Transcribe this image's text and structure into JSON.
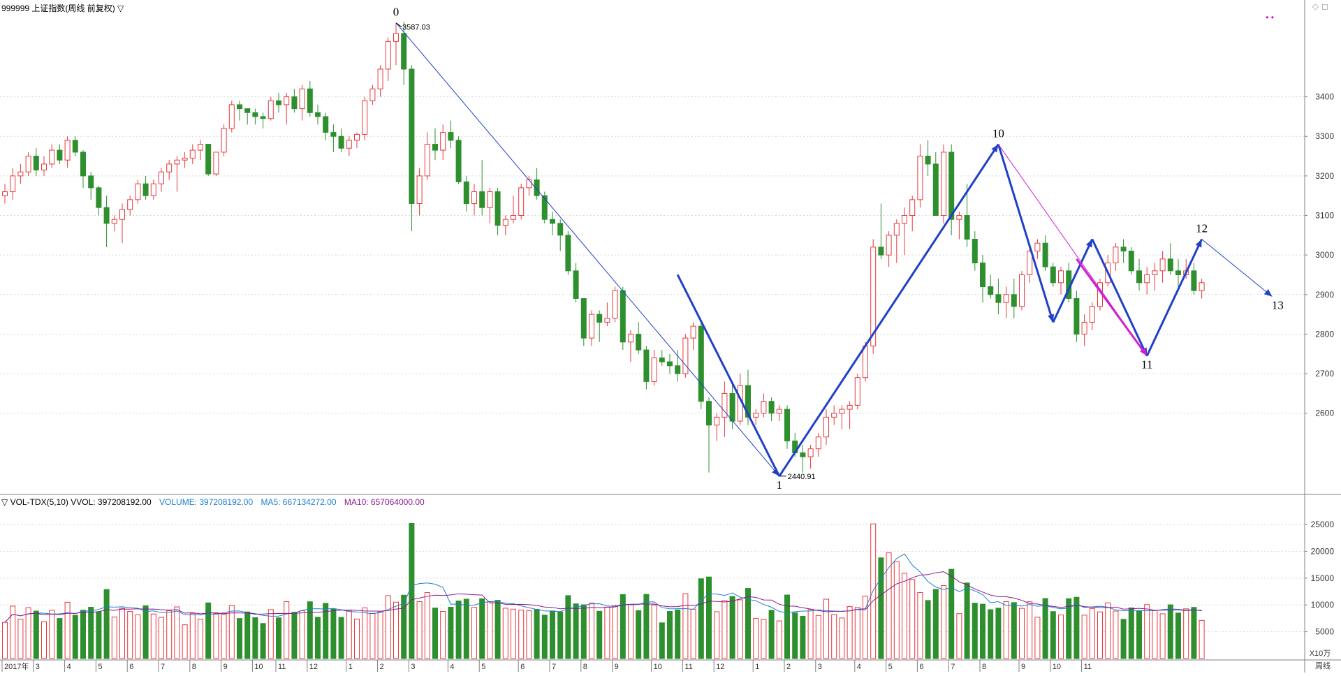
{
  "header": {
    "symbol_title": "999999 上证指数(周线 前复权) ▽",
    "dots": "• •"
  },
  "volume_header": {
    "indicator": "▽ VOL-TDX(5,10) VVOL: 397208192.00",
    "volume": "VOLUME: 397208192.00",
    "ma5": "MA5: 667134272.00",
    "ma10": "MA10: 657064000.00"
  },
  "colors": {
    "up": "#e8383d",
    "down": "#2d8f2d",
    "wave_blue": "#2040c8",
    "wave_magenta": "#d020d0",
    "ma5": "#1e7fd0",
    "ma10": "#8b1a8b",
    "grid": "#d6d6d6",
    "axis": "#808080"
  },
  "chart_data": [
    {
      "type": "candlestick",
      "title": "999999 上证指数(周线 前复权)",
      "ylim": [
        2400,
        3620
      ],
      "y_ticks": [
        2600,
        2700,
        2800,
        2900,
        3000,
        3100,
        3200,
        3300,
        3400
      ],
      "annotations": {
        "high_label": "3587.03",
        "low_label": "2440.91"
      },
      "ohlc": [
        [
          3150,
          3180,
          3130,
          3160
        ],
        [
          3160,
          3220,
          3140,
          3200
        ],
        [
          3200,
          3230,
          3180,
          3210
        ],
        [
          3210,
          3260,
          3200,
          3250
        ],
        [
          3250,
          3270,
          3200,
          3215
        ],
        [
          3215,
          3250,
          3200,
          3230
        ],
        [
          3230,
          3280,
          3220,
          3265
        ],
        [
          3265,
          3280,
          3230,
          3240
        ],
        [
          3240,
          3300,
          3220,
          3290
        ],
        [
          3290,
          3300,
          3250,
          3260
        ],
        [
          3260,
          3265,
          3170,
          3200
        ],
        [
          3200,
          3210,
          3140,
          3170
        ],
        [
          3170,
          3175,
          3100,
          3120
        ],
        [
          3120,
          3150,
          3020,
          3080
        ],
        [
          3080,
          3100,
          3060,
          3090
        ],
        [
          3090,
          3130,
          3030,
          3115
        ],
        [
          3115,
          3150,
          3100,
          3140
        ],
        [
          3140,
          3190,
          3130,
          3180
        ],
        [
          3180,
          3200,
          3140,
          3150
        ],
        [
          3150,
          3190,
          3140,
          3180
        ],
        [
          3180,
          3220,
          3160,
          3210
        ],
        [
          3210,
          3240,
          3190,
          3230
        ],
        [
          3230,
          3250,
          3160,
          3240
        ],
        [
          3240,
          3260,
          3220,
          3245
        ],
        [
          3245,
          3280,
          3230,
          3265
        ],
        [
          3265,
          3290,
          3240,
          3280
        ],
        [
          3280,
          3280,
          3200,
          3205
        ],
        [
          3205,
          3260,
          3200,
          3260
        ],
        [
          3260,
          3330,
          3250,
          3320
        ],
        [
          3320,
          3390,
          3310,
          3380
        ],
        [
          3380,
          3390,
          3340,
          3370
        ],
        [
          3370,
          3370,
          3330,
          3360
        ],
        [
          3360,
          3370,
          3330,
          3350
        ],
        [
          3350,
          3360,
          3320,
          3345
        ],
        [
          3345,
          3400,
          3340,
          3390
        ],
        [
          3390,
          3410,
          3360,
          3380
        ],
        [
          3380,
          3410,
          3330,
          3400
        ],
        [
          3400,
          3420,
          3360,
          3370
        ],
        [
          3370,
          3430,
          3340,
          3420
        ],
        [
          3420,
          3440,
          3350,
          3360
        ],
        [
          3360,
          3380,
          3330,
          3350
        ],
        [
          3350,
          3360,
          3290,
          3310
        ],
        [
          3310,
          3330,
          3260,
          3300
        ],
        [
          3300,
          3320,
          3260,
          3270
        ],
        [
          3270,
          3300,
          3250,
          3290
        ],
        [
          3290,
          3310,
          3270,
          3305
        ],
        [
          3305,
          3400,
          3290,
          3390
        ],
        [
          3390,
          3430,
          3380,
          3420
        ],
        [
          3420,
          3480,
          3400,
          3470
        ],
        [
          3470,
          3550,
          3440,
          3540
        ],
        [
          3540,
          3587,
          3480,
          3560
        ],
        [
          3560,
          3590,
          3430,
          3470
        ],
        [
          3470,
          3480,
          3060,
          3130
        ],
        [
          3130,
          3220,
          3100,
          3200
        ],
        [
          3200,
          3310,
          3190,
          3280
        ],
        [
          3280,
          3320,
          3240,
          3265
        ],
        [
          3265,
          3330,
          3240,
          3310
        ],
        [
          3310,
          3340,
          3270,
          3290
        ],
        [
          3290,
          3300,
          3180,
          3185
        ],
        [
          3185,
          3200,
          3110,
          3130
        ],
        [
          3130,
          3180,
          3100,
          3160
        ],
        [
          3160,
          3240,
          3100,
          3120
        ],
        [
          3120,
          3170,
          3080,
          3160
        ],
        [
          3160,
          3170,
          3050,
          3075
        ],
        [
          3075,
          3100,
          3050,
          3090
        ],
        [
          3090,
          3150,
          3080,
          3100
        ],
        [
          3100,
          3180,
          3090,
          3170
        ],
        [
          3170,
          3200,
          3150,
          3190
        ],
        [
          3190,
          3220,
          3140,
          3150
        ],
        [
          3150,
          3160,
          3080,
          3090
        ],
        [
          3090,
          3110,
          3050,
          3080
        ],
        [
          3080,
          3090,
          3010,
          3050
        ],
        [
          3050,
          3060,
          2950,
          2960
        ],
        [
          2960,
          2980,
          2880,
          2890
        ],
        [
          2890,
          2890,
          2770,
          2790
        ],
        [
          2790,
          2860,
          2770,
          2850
        ],
        [
          2850,
          2860,
          2780,
          2830
        ],
        [
          2830,
          2880,
          2820,
          2840
        ],
        [
          2840,
          2920,
          2830,
          2910
        ],
        [
          2910,
          2920,
          2760,
          2780
        ],
        [
          2780,
          2810,
          2730,
          2800
        ],
        [
          2800,
          2830,
          2750,
          2760
        ],
        [
          2760,
          2770,
          2660,
          2680
        ],
        [
          2680,
          2760,
          2670,
          2740
        ],
        [
          2740,
          2760,
          2720,
          2730
        ],
        [
          2730,
          2750,
          2700,
          2720
        ],
        [
          2720,
          2760,
          2680,
          2700
        ],
        [
          2700,
          2800,
          2690,
          2790
        ],
        [
          2790,
          2830,
          2760,
          2820
        ],
        [
          2820,
          2830,
          2610,
          2630
        ],
        [
          2630,
          2640,
          2450,
          2570
        ],
        [
          2570,
          2600,
          2530,
          2590
        ],
        [
          2590,
          2680,
          2540,
          2650
        ],
        [
          2650,
          2680,
          2560,
          2580
        ],
        [
          2580,
          2700,
          2570,
          2670
        ],
        [
          2670,
          2710,
          2570,
          2590
        ],
        [
          2590,
          2610,
          2570,
          2600
        ],
        [
          2600,
          2650,
          2590,
          2630
        ],
        [
          2630,
          2640,
          2580,
          2600
        ],
        [
          2600,
          2620,
          2580,
          2610
        ],
        [
          2610,
          2620,
          2510,
          2530
        ],
        [
          2530,
          2550,
          2490,
          2500
        ],
        [
          2500,
          2520,
          2450,
          2490
        ],
        [
          2490,
          2520,
          2460,
          2510
        ],
        [
          2510,
          2550,
          2490,
          2540
        ],
        [
          2540,
          2610,
          2520,
          2590
        ],
        [
          2590,
          2620,
          2570,
          2600
        ],
        [
          2600,
          2620,
          2560,
          2610
        ],
        [
          2610,
          2630,
          2560,
          2620
        ],
        [
          2620,
          2700,
          2610,
          2690
        ],
        [
          2690,
          2780,
          2680,
          2770
        ],
        [
          2770,
          3040,
          2750,
          3020
        ],
        [
          3020,
          3130,
          2990,
          3000
        ],
        [
          3000,
          3060,
          2970,
          3050
        ],
        [
          3050,
          3090,
          2980,
          3080
        ],
        [
          3080,
          3120,
          3000,
          3100
        ],
        [
          3100,
          3150,
          3060,
          3140
        ],
        [
          3140,
          3280,
          3120,
          3250
        ],
        [
          3250,
          3290,
          3200,
          3230
        ],
        [
          3230,
          3260,
          3100,
          3100
        ],
        [
          3100,
          3280,
          3080,
          3260
        ],
        [
          3260,
          3280,
          3050,
          3090
        ],
        [
          3090,
          3110,
          3040,
          3100
        ],
        [
          3100,
          3180,
          3020,
          3040
        ],
        [
          3040,
          3060,
          2960,
          2980
        ],
        [
          2980,
          3000,
          2880,
          2920
        ],
        [
          2920,
          2950,
          2890,
          2900
        ],
        [
          2900,
          2940,
          2850,
          2880
        ],
        [
          2880,
          2920,
          2840,
          2900
        ],
        [
          2900,
          2940,
          2840,
          2870
        ],
        [
          2870,
          2960,
          2860,
          2950
        ],
        [
          2950,
          3020,
          2930,
          3010
        ],
        [
          3010,
          3040,
          2990,
          3030
        ],
        [
          3030,
          3050,
          2960,
          2970
        ],
        [
          2970,
          2980,
          2920,
          2930
        ],
        [
          2930,
          2970,
          2900,
          2960
        ],
        [
          2960,
          2980,
          2880,
          2890
        ],
        [
          2890,
          2910,
          2780,
          2800
        ],
        [
          2800,
          2850,
          2770,
          2830
        ],
        [
          2830,
          2880,
          2810,
          2870
        ],
        [
          2870,
          2940,
          2860,
          2930
        ],
        [
          2930,
          3000,
          2920,
          2980
        ],
        [
          2980,
          3030,
          2960,
          3020
        ],
        [
          3020,
          3040,
          2980,
          3010
        ],
        [
          3010,
          3020,
          2950,
          2960
        ],
        [
          2960,
          2990,
          2910,
          2930
        ],
        [
          2930,
          2970,
          2900,
          2950
        ],
        [
          2950,
          2980,
          2910,
          2960
        ],
        [
          2960,
          3010,
          2930,
          2990
        ],
        [
          2990,
          3030,
          2950,
          2960
        ],
        [
          2960,
          2990,
          2920,
          2950
        ],
        [
          2950,
          2990,
          2940,
          2960
        ],
        [
          2960,
          2980,
          2900,
          2910
        ],
        [
          2910,
          2940,
          2890,
          2930
        ]
      ],
      "wave_points": [
        {
          "label": "0",
          "index": 50,
          "price": 3587
        },
        {
          "label": "1",
          "index": 99,
          "price": 2441
        },
        {
          "label": "10",
          "index": 127,
          "price": 3280
        },
        {
          "label": "11",
          "index": 146,
          "price": 2745
        },
        {
          "label": "12",
          "index": 153,
          "price": 3040
        },
        {
          "label": "13",
          "index": 162,
          "price": 2895
        }
      ],
      "wave_extra_points": [
        {
          "index": 134,
          "price": 2830
        },
        {
          "index": 139,
          "price": 3040
        }
      ]
    },
    {
      "type": "bar",
      "title": "VOL-TDX(5,10)",
      "ylim": [
        0,
        28000
      ],
      "y_ticks": [
        5000,
        10000,
        15000,
        20000,
        25000
      ],
      "unit": "X10万",
      "x_tick_labels": [
        "2017年",
        "3",
        "4",
        "5",
        "6",
        "7",
        "8",
        "9",
        "10",
        "11",
        "12",
        "1",
        "2",
        "3",
        "4",
        "5",
        "6",
        "7",
        "8",
        "9",
        "10",
        "11",
        "12",
        "1",
        "2",
        "3",
        "4",
        "5",
        "6",
        "7",
        "8",
        "9",
        "10",
        "11"
      ],
      "x_tick_indices": [
        0,
        4,
        8,
        12,
        16,
        20,
        24,
        28,
        32,
        35,
        39,
        44,
        48,
        52,
        57,
        61,
        66,
        70,
        74,
        78,
        83,
        87,
        91,
        96,
        100,
        104,
        109,
        113,
        117,
        121,
        125,
        130,
        134,
        138
      ],
      "period_label": "周线"
    }
  ]
}
